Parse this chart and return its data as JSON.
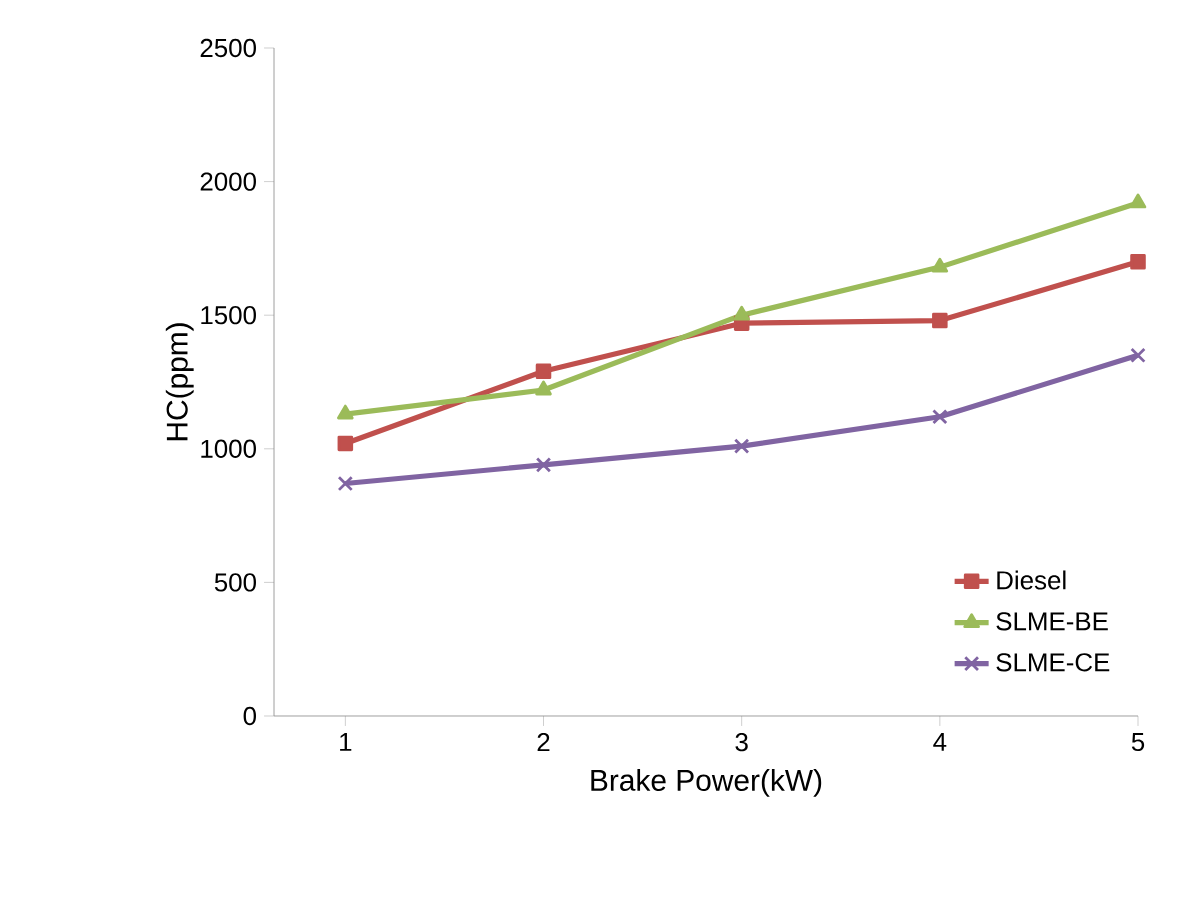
{
  "chart_data": {
    "type": "line",
    "xlabel": "Brake Power(kW)",
    "ylabel": "HC(ppm)",
    "categories": [
      "1",
      "2",
      "3",
      "4",
      "5"
    ],
    "ylim": [
      0,
      2500
    ],
    "yticks": [
      0,
      500,
      1000,
      1500,
      2000,
      2500
    ],
    "grid": false,
    "legend": "bottom right",
    "series": [
      {
        "name": "Diesel",
        "color": "#c0504d",
        "marker": "square",
        "values": [
          1020,
          1290,
          1470,
          1480,
          1700
        ]
      },
      {
        "name": "SLME-BE",
        "color": "#9bbb59",
        "marker": "triangle",
        "values": [
          1130,
          1220,
          1500,
          1680,
          1920
        ]
      },
      {
        "name": "SLME-CE",
        "color": "#8064a2",
        "marker": "cross",
        "values": [
          870,
          940,
          1010,
          1120,
          1350
        ]
      }
    ]
  }
}
